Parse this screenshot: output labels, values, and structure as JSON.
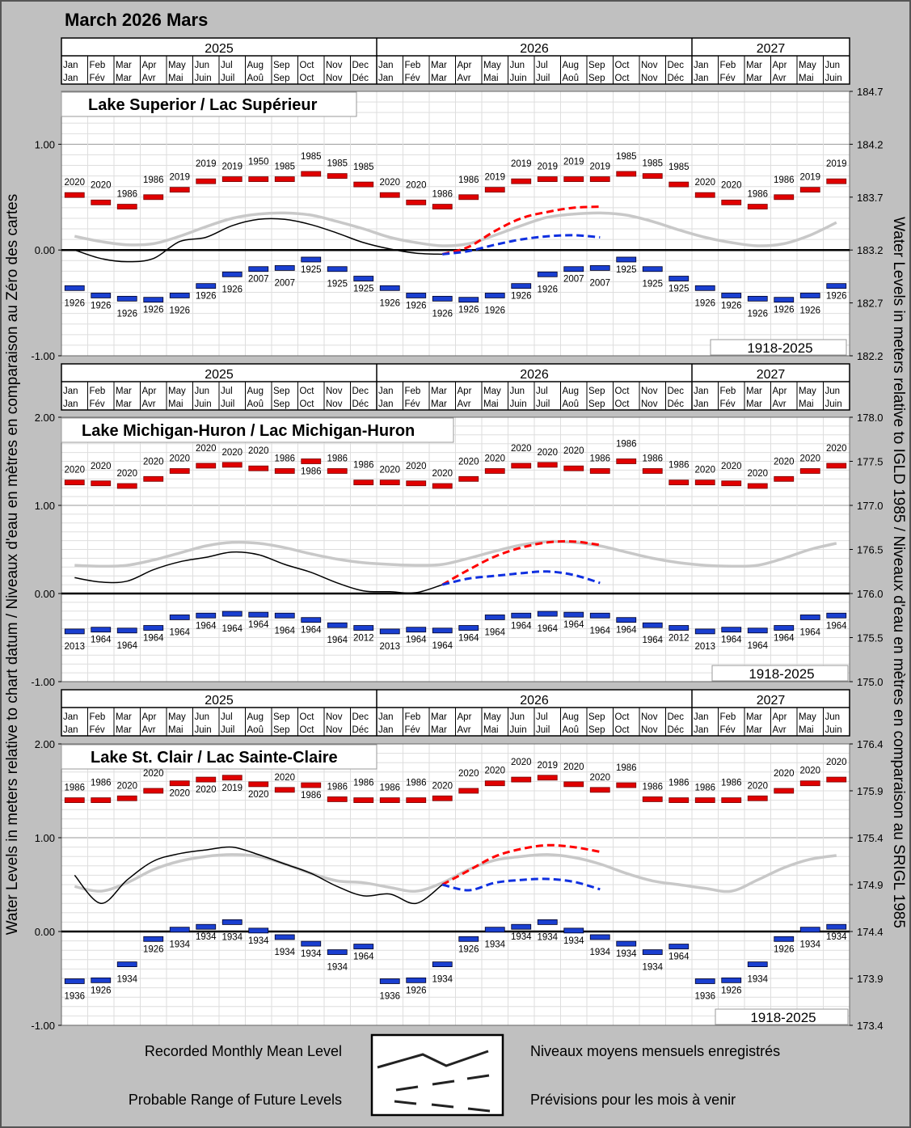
{
  "title": "March 2026 Mars",
  "header": {
    "years": [
      {
        "label": "2025",
        "months": 12
      },
      {
        "label": "2026",
        "months": 12
      },
      {
        "label": "2027",
        "months": 6
      }
    ],
    "months": [
      {
        "en": "Jan",
        "fr": "Jan"
      },
      {
        "en": "Feb",
        "fr": "Fév"
      },
      {
        "en": "Mar",
        "fr": "Mar"
      },
      {
        "en": "Apr",
        "fr": "Avr"
      },
      {
        "en": "May",
        "fr": "Mai"
      },
      {
        "en": "Jun",
        "fr": "Juin"
      },
      {
        "en": "Jul",
        "fr": "Juil"
      },
      {
        "en": "Aug",
        "fr": "Aoû"
      },
      {
        "en": "Sep",
        "fr": "Sep"
      },
      {
        "en": "Oct",
        "fr": "Oct"
      },
      {
        "en": "Nov",
        "fr": "Nov"
      },
      {
        "en": "Dec",
        "fr": "Déc"
      }
    ]
  },
  "axes": {
    "left_title": "Water Levels in meters relative to chart datum / Niveaux d'eau en mètres en comparaison au Zéro des cartes",
    "right_title": "Water Levels in meters relative to IGLD 1985 / Niveaux d'eau en mètres en comparaison au SRIGL 1985"
  },
  "legend": {
    "recorded_en": "Recorded Monthly Mean Level",
    "probable_en": "Probable Range of Future Levels",
    "recorded_fr": "Niveaux moyens mensuels enregistrés",
    "probable_fr": "Prévisions pour les mois à venir"
  },
  "colors": {
    "max_bar": "#e00000",
    "min_bar": "#1a3fd0",
    "recorded": "#000000",
    "average": "#c8c8c8",
    "forecast_high": "#ff0000",
    "forecast_low": "#1030e0",
    "background": "#c0c0c0"
  },
  "chart_data": [
    {
      "type": "line",
      "title": "Lake Superior / Lac Supérieur",
      "period": "1918-2025",
      "x_start": "2025-01",
      "x_end": "2027-06",
      "ylim": [
        -1.0,
        1.5
      ],
      "ylim_right": [
        182.2,
        184.7
      ],
      "yticks_left": [
        "1.00",
        "0.00",
        "-1.00"
      ],
      "yticks_left_values": [
        1,
        0,
        -1
      ],
      "yticks_right": [
        "184.7",
        "184.2",
        "183.7",
        "183.2",
        "182.7",
        "182.2"
      ],
      "datum_igld": 183.2,
      "max": {
        "values": [
          0.52,
          0.45,
          0.41,
          0.5,
          0.57,
          0.65,
          0.67,
          0.67,
          0.67,
          0.72,
          0.7,
          0.62,
          0.52,
          0.45,
          0.41,
          0.5,
          0.57,
          0.65,
          0.67,
          0.67,
          0.67,
          0.72,
          0.7,
          0.62,
          0.52,
          0.45,
          0.41,
          0.5,
          0.57,
          0.65
        ],
        "years": [
          "2020",
          "2020",
          "1986",
          "1986",
          "2019",
          "2019",
          "2019",
          "1950",
          "1985",
          "1985",
          "1985",
          "1985",
          "2020",
          "2020",
          "1986",
          "1986",
          "2019",
          "2019",
          "2019",
          "2019",
          "2019",
          "1985",
          "1985",
          "1985",
          "2020",
          "2020",
          "1986",
          "1986",
          "2019",
          "2019"
        ]
      },
      "min": {
        "values": [
          -0.36,
          -0.43,
          -0.46,
          -0.47,
          -0.43,
          -0.34,
          -0.23,
          -0.18,
          -0.17,
          -0.09,
          -0.18,
          -0.27,
          -0.36,
          -0.43,
          -0.46,
          -0.47,
          -0.43,
          -0.34,
          -0.23,
          -0.18,
          -0.17,
          -0.09,
          -0.18,
          -0.27,
          -0.36,
          -0.43,
          -0.46,
          -0.47,
          -0.43,
          -0.34
        ],
        "years": [
          "1926",
          "1926",
          "1926",
          "1926",
          "1926",
          "1926",
          "1926",
          "2007",
          "2007",
          "1925",
          "1925",
          "1925",
          "1926",
          "1926",
          "1926",
          "1926",
          "1926",
          "1926",
          "1926",
          "2007",
          "2007",
          "1925",
          "1925",
          "1925",
          "1926",
          "1926",
          "1926",
          "1926",
          "1926",
          "1926"
        ]
      },
      "average": [
        0.13,
        0.08,
        0.05,
        0.06,
        0.13,
        0.22,
        0.3,
        0.34,
        0.35,
        0.33,
        0.27,
        0.2,
        0.12,
        0.07,
        0.04,
        0.06,
        0.14,
        0.23,
        0.31,
        0.34,
        0.35,
        0.33,
        0.27,
        0.19,
        0.12,
        0.07,
        0.04,
        0.06,
        0.14,
        0.26
      ],
      "recorded": [
        0.0,
        -0.08,
        -0.11,
        -0.08,
        0.08,
        0.12,
        0.23,
        0.29,
        0.29,
        0.24,
        0.16,
        0.07,
        0.01,
        -0.03,
        -0.04
      ],
      "forecast_start": "2026-03",
      "forecast_high": [
        -0.04,
        0.03,
        0.18,
        0.3,
        0.36,
        0.4,
        0.41
      ],
      "forecast_low": [
        -0.04,
        -0.01,
        0.05,
        0.1,
        0.13,
        0.14,
        0.12
      ]
    },
    {
      "type": "line",
      "title": "Lake Michigan-Huron / Lac Michigan-Huron",
      "period": "1918-2025",
      "x_start": "2025-01",
      "x_end": "2027-06",
      "ylim": [
        -1.0,
        2.0
      ],
      "ylim_right": [
        175.0,
        178.0
      ],
      "yticks_left": [
        "2.00",
        "1.00",
        "0.00",
        "-1.00"
      ],
      "yticks_left_values": [
        2,
        1,
        0,
        -1
      ],
      "yticks_right": [
        "178.0",
        "177.5",
        "177.0",
        "176.5",
        "176.0",
        "175.5",
        "175.0"
      ],
      "datum_igld": 176.0,
      "max": {
        "values": [
          1.26,
          1.25,
          1.22,
          1.3,
          1.39,
          1.45,
          1.46,
          1.42,
          1.39,
          1.5,
          1.39,
          1.26,
          1.26,
          1.25,
          1.22,
          1.3,
          1.39,
          1.45,
          1.46,
          1.42,
          1.39,
          1.5,
          1.39,
          1.26,
          1.26,
          1.25,
          1.22,
          1.3,
          1.39,
          1.45
        ],
        "years": [
          "2020",
          "2020",
          "2020",
          "2020",
          "2020",
          "2020",
          "2020",
          "2020",
          "1986",
          "1986",
          "1986",
          "1986",
          "2020",
          "2020",
          "2020",
          "2020",
          "2020",
          "2020",
          "2020",
          "2020",
          "1986",
          "1986",
          "1986",
          "1986",
          "2020",
          "2020",
          "2020",
          "2020",
          "2020",
          "2020"
        ]
      },
      "min": {
        "values": [
          -0.43,
          -0.41,
          -0.42,
          -0.39,
          -0.27,
          -0.25,
          -0.23,
          -0.24,
          -0.25,
          -0.3,
          -0.36,
          -0.39,
          -0.43,
          -0.41,
          -0.42,
          -0.39,
          -0.27,
          -0.25,
          -0.23,
          -0.24,
          -0.25,
          -0.3,
          -0.36,
          -0.39,
          -0.43,
          -0.41,
          -0.42,
          -0.39,
          -0.27,
          -0.25
        ],
        "years": [
          "2013",
          "1964",
          "1964",
          "1964",
          "1964",
          "1964",
          "1964",
          "1964",
          "1964",
          "1964",
          "1964",
          "2012",
          "2013",
          "1964",
          "1964",
          "1964",
          "1964",
          "1964",
          "1964",
          "1964",
          "1964",
          "1964",
          "1964",
          "2012",
          "2013",
          "1964",
          "1964",
          "1964",
          "1964",
          "1964"
        ]
      },
      "average": [
        0.32,
        0.31,
        0.32,
        0.38,
        0.46,
        0.54,
        0.58,
        0.57,
        0.52,
        0.45,
        0.39,
        0.35,
        0.33,
        0.32,
        0.33,
        0.4,
        0.48,
        0.55,
        0.59,
        0.58,
        0.54,
        0.47,
        0.4,
        0.35,
        0.32,
        0.31,
        0.32,
        0.4,
        0.5,
        0.57
      ],
      "recorded": [
        0.18,
        0.13,
        0.14,
        0.27,
        0.36,
        0.41,
        0.47,
        0.44,
        0.33,
        0.24,
        0.12,
        0.03,
        0.02,
        0.01,
        0.1
      ],
      "forecast_start": "2026-03",
      "forecast_high": [
        0.1,
        0.27,
        0.42,
        0.52,
        0.58,
        0.59,
        0.55
      ],
      "forecast_low": [
        0.1,
        0.17,
        0.2,
        0.23,
        0.25,
        0.21,
        0.12
      ]
    },
    {
      "type": "line",
      "title": "Lake St. Clair / Lac Sainte-Claire",
      "period": "1918-2025",
      "x_start": "2025-01",
      "x_end": "2027-06",
      "ylim": [
        -1.0,
        2.0
      ],
      "ylim_right": [
        173.4,
        176.4
      ],
      "yticks_left": [
        "2.00",
        "1.00",
        "0.00",
        "-1.00"
      ],
      "yticks_left_values": [
        2,
        1,
        0,
        -1
      ],
      "yticks_right": [
        "176.4",
        "175.9",
        "175.4",
        "174.9",
        "174.4",
        "173.9",
        "173.4"
      ],
      "datum_igld": 174.4,
      "max": {
        "values": [
          1.4,
          1.4,
          1.42,
          1.5,
          1.58,
          1.62,
          1.64,
          1.57,
          1.51,
          1.56,
          1.41,
          1.4,
          1.4,
          1.4,
          1.42,
          1.5,
          1.58,
          1.62,
          1.64,
          1.57,
          1.51,
          1.56,
          1.41,
          1.4,
          1.4,
          1.4,
          1.42,
          1.5,
          1.58,
          1.62
        ],
        "years": [
          "1986",
          "1986",
          "2020",
          "2020",
          "2020",
          "2020",
          "2019",
          "2020",
          "2020",
          "1986",
          "1986",
          "1986",
          "1986",
          "1986",
          "2020",
          "2020",
          "2020",
          "2020",
          "2019",
          "2020",
          "2020",
          "1986",
          "1986",
          "1986",
          "1986",
          "1986",
          "2020",
          "2020",
          "2020",
          "2020"
        ]
      },
      "min": {
        "values": [
          -0.53,
          -0.52,
          -0.35,
          -0.08,
          0.02,
          0.05,
          0.1,
          0.01,
          -0.06,
          -0.13,
          -0.22,
          -0.16,
          -0.53,
          -0.52,
          -0.35,
          -0.08,
          0.02,
          0.05,
          0.1,
          0.01,
          -0.06,
          -0.13,
          -0.22,
          -0.16,
          -0.53,
          -0.52,
          -0.35,
          -0.08,
          0.02,
          0.05
        ],
        "years": [
          "1936",
          "1926",
          "1934",
          "1926",
          "1934",
          "1934",
          "1934",
          "1934",
          "1934",
          "1934",
          "1934",
          "1964",
          "1936",
          "1926",
          "1934",
          "1926",
          "1934",
          "1934",
          "1934",
          "1934",
          "1934",
          "1934",
          "1934",
          "1964",
          "1936",
          "1926",
          "1934",
          "1926",
          "1934",
          "1934"
        ]
      },
      "average": [
        0.48,
        0.43,
        0.52,
        0.66,
        0.75,
        0.8,
        0.82,
        0.8,
        0.72,
        0.62,
        0.54,
        0.52,
        0.47,
        0.43,
        0.52,
        0.66,
        0.76,
        0.8,
        0.82,
        0.79,
        0.72,
        0.62,
        0.54,
        0.5,
        0.46,
        0.43,
        0.55,
        0.68,
        0.77,
        0.81
      ],
      "recorded": [
        0.6,
        0.3,
        0.55,
        0.75,
        0.83,
        0.87,
        0.9,
        0.82,
        0.72,
        0.62,
        0.48,
        0.38,
        0.4,
        0.3,
        0.5
      ],
      "forecast_start": "2026-03",
      "forecast_high": [
        0.5,
        0.65,
        0.8,
        0.88,
        0.92,
        0.9,
        0.85
      ],
      "forecast_low": [
        0.5,
        0.44,
        0.52,
        0.55,
        0.56,
        0.53,
        0.45
      ]
    }
  ]
}
